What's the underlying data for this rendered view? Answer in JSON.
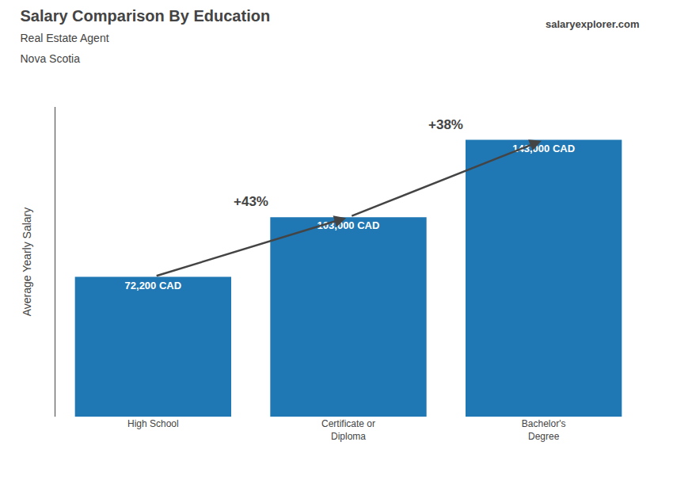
{
  "chart_data": {
    "type": "bar",
    "title": "Salary Comparison By Education",
    "subtitle": [
      "Real Estate Agent",
      "Nova Scotia"
    ],
    "source": "salaryexplorer.com",
    "ylabel": "Average Yearly Salary",
    "categories": [
      "High School",
      "Certificate or\nDiploma",
      "Bachelor's\nDegree"
    ],
    "values": [
      72200,
      103000,
      143000
    ],
    "value_labels": [
      "72,200 CAD",
      "103,000 CAD",
      "143,000 CAD"
    ],
    "data_labels": true,
    "annotations": [
      "+43%",
      "+38%"
    ],
    "ylim": [
      0,
      160000
    ],
    "grid": false,
    "tick_labels": "x"
  }
}
